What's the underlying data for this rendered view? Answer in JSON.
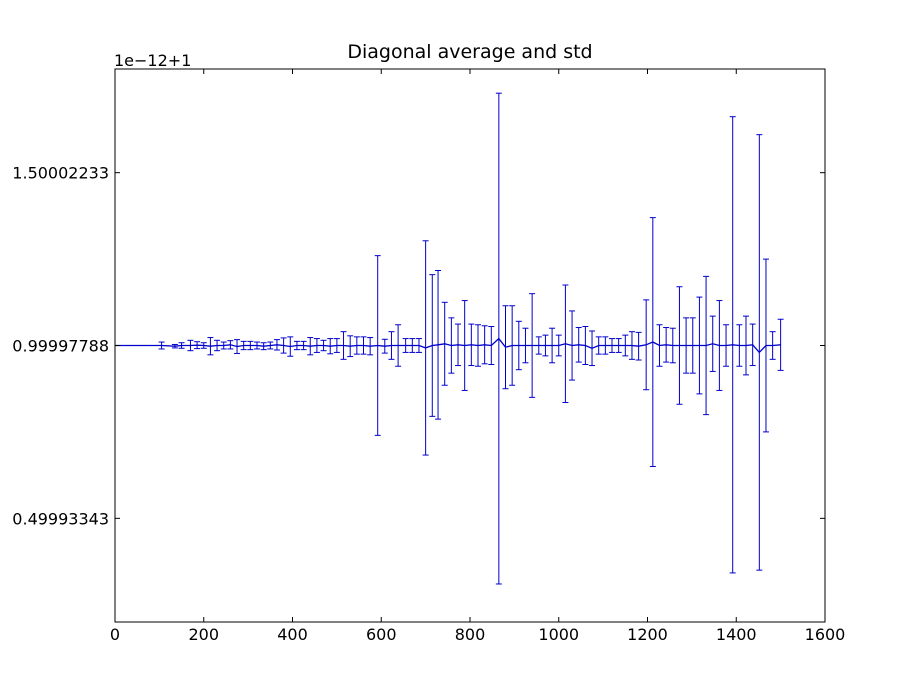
{
  "chart_data": {
    "type": "line",
    "title": "Diagonal average and std",
    "xlabel": "",
    "ylabel": "",
    "y_offset_text": "1e−12+1",
    "xlim": [
      0,
      1600
    ],
    "ylim": [
      0.2,
      1.8
    ],
    "x_ticks": [
      0,
      200,
      400,
      600,
      800,
      1000,
      1200,
      1400,
      1600
    ],
    "x_tick_labels": [
      "0",
      "200",
      "400",
      "600",
      "800",
      "1000",
      "1200",
      "1400",
      "1600"
    ],
    "y_ticks": [
      0.49993343,
      0.99997788,
      1.50002233
    ],
    "y_tick_labels": [
      "0.49993343",
      "0.99997788",
      "1.50002233"
    ],
    "grid": false,
    "legend": "none",
    "color": "#0000cc",
    "series": [
      {
        "x": [
          0,
          105,
          135,
          150,
          170,
          185,
          200,
          215,
          230,
          245,
          260,
          275,
          290,
          305,
          320,
          335,
          350,
          365,
          380,
          395,
          410,
          425,
          440,
          455,
          470,
          485,
          500,
          515,
          530,
          545,
          560,
          575,
          592,
          608,
          623,
          638,
          655,
          670,
          685,
          700,
          715,
          728,
          743,
          758,
          773,
          788,
          803,
          818,
          833,
          848,
          865,
          880,
          895,
          910,
          925,
          940,
          955,
          970,
          985,
          1000,
          1015,
          1030,
          1045,
          1060,
          1075,
          1090,
          1105,
          1120,
          1135,
          1150,
          1165,
          1180,
          1197,
          1212,
          1227,
          1242,
          1257,
          1272,
          1287,
          1302,
          1317,
          1332,
          1347,
          1362,
          1377,
          1392,
          1407,
          1422,
          1437,
          1452,
          1467,
          1482,
          1500
        ],
        "y": [
          1.0,
          1.0,
          0.998,
          1.0,
          1.0,
          1.001,
          1.0,
          0.998,
          1.0,
          1.0,
          1.002,
          0.997,
          1.0,
          1.0,
          1.0,
          0.998,
          1.0,
          1.002,
          1.0,
          0.997,
          1.0,
          1.0,
          0.998,
          1.0,
          1.0,
          0.998,
          1.0,
          1.0,
          0.998,
          1.0,
          1.0,
          0.998,
          1.0,
          0.998,
          1.0,
          1.0,
          1.0,
          1.0,
          1.0,
          0.993,
          1.0,
          1.002,
          1.005,
          1.0,
          1.002,
          1.0,
          1.002,
          1.0,
          1.002,
          1.0,
          1.02,
          0.995,
          1.0,
          1.0,
          1.0,
          1.0,
          1.0,
          1.0,
          1.0,
          1.0,
          1.005,
          1.0,
          1.002,
          1.0,
          0.992,
          1.0,
          1.0,
          1.0,
          1.0,
          1.0,
          1.0,
          0.998,
          1.002,
          1.01,
          1.0,
          1.002,
          1.0,
          1.0,
          1.0,
          1.0,
          1.0,
          1.0,
          1.005,
          1.0,
          1.0,
          1.002,
          1.0,
          1.0,
          1.002,
          0.98,
          1.0,
          1.0,
          1.002
        ],
        "err": [
          0.0,
          0.01,
          0.005,
          0.008,
          0.015,
          0.01,
          0.008,
          0.025,
          0.015,
          0.01,
          0.012,
          0.02,
          0.012,
          0.012,
          0.01,
          0.01,
          0.01,
          0.015,
          0.022,
          0.028,
          0.012,
          0.012,
          0.025,
          0.02,
          0.015,
          0.022,
          0.02,
          0.04,
          0.03,
          0.025,
          0.025,
          0.025,
          0.26,
          0.02,
          0.04,
          0.06,
          0.02,
          0.02,
          0.02,
          0.31,
          0.205,
          0.215,
          0.12,
          0.08,
          0.06,
          0.13,
          0.06,
          0.06,
          0.055,
          0.055,
          0.71,
          0.12,
          0.115,
          0.07,
          0.05,
          0.15,
          0.025,
          0.03,
          0.05,
          0.03,
          0.17,
          0.1,
          0.05,
          0.055,
          0.05,
          0.025,
          0.025,
          0.02,
          0.02,
          0.03,
          0.04,
          0.04,
          0.13,
          0.36,
          0.06,
          0.05,
          0.05,
          0.17,
          0.08,
          0.08,
          0.14,
          0.2,
          0.08,
          0.13,
          0.06,
          0.66,
          0.06,
          0.085,
          0.06,
          0.63,
          0.25,
          0.04,
          0.074
        ]
      }
    ]
  }
}
